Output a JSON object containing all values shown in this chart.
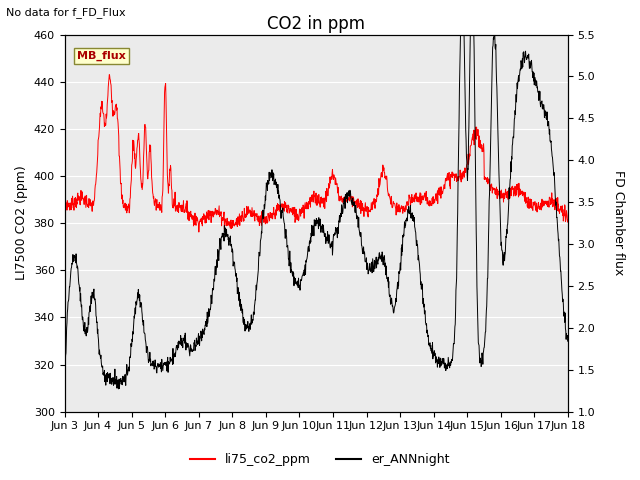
{
  "title": "CO2 in ppm",
  "ylabel_left": "LI7500 CO2 (ppm)",
  "ylabel_right": "FD Chamber flux",
  "ylim_left": [
    300,
    460
  ],
  "ylim_right": [
    1.0,
    5.5
  ],
  "xtick_labels": [
    "Jun 3",
    "Jun 4",
    "Jun 5",
    "Jun 6",
    "Jun 7",
    "Jun 8",
    "Jun 9",
    "Jun 10",
    "Jun 11",
    "Jun 12",
    "Jun 13",
    "Jun 14",
    "Jun 15",
    "Jun 16",
    "Jun 17",
    "Jun 18"
  ],
  "annotation_topleft": "No data for f_FD_Flux",
  "mb_flux_label": "MB_flux",
  "legend_entries": [
    "li75_co2_ppm",
    "er_ANNnight"
  ],
  "bg_color": "#ebebeb",
  "title_fontsize": 12,
  "axis_fontsize": 9,
  "tick_fontsize": 8,
  "annotation_fontsize": 8
}
